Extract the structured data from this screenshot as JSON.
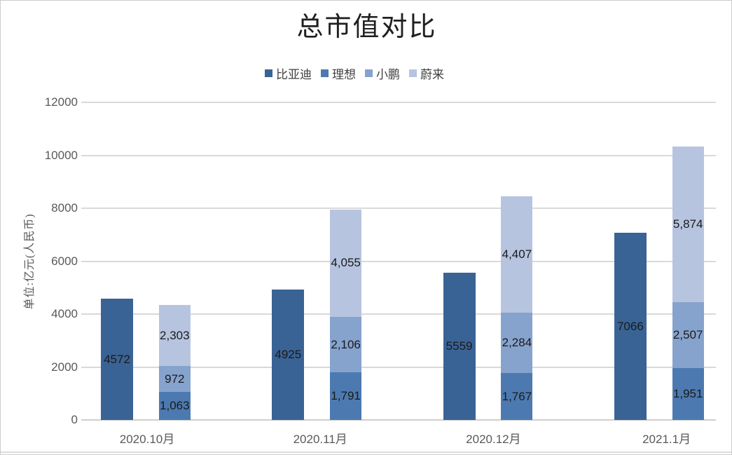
{
  "chart_data": {
    "type": "bar",
    "subtype": "clustered-plus-stacked",
    "title": "总市值对比",
    "ylabel": "单位:亿元(人民币)",
    "xlabel": "",
    "categories": [
      "2020.10月",
      "2020.11月",
      "2020.12月",
      "2021.1月"
    ],
    "series": [
      {
        "name": "比亚迪",
        "color": "#3a6395",
        "stack": "byd",
        "values": [
          4572,
          4925,
          5559,
          7066
        ],
        "labels": [
          "4572",
          "4925",
          "5559",
          "7066"
        ]
      },
      {
        "name": "理想",
        "color": "#4c7ab0",
        "stack": "new-forces",
        "values": [
          1063,
          1791,
          1767,
          1951
        ],
        "labels": [
          "1,063",
          "1,791",
          "1,767",
          "1,951"
        ]
      },
      {
        "name": "小鹏",
        "color": "#86a3cd",
        "stack": "new-forces",
        "values": [
          972,
          2106,
          2284,
          2507
        ],
        "labels": [
          "972",
          "2,106",
          "2,284",
          "2,507"
        ]
      },
      {
        "name": "蔚来",
        "color": "#b7c4e0",
        "stack": "new-forces",
        "values": [
          2303,
          4055,
          4407,
          5874
        ],
        "labels": [
          "2,303",
          "4,055",
          "4,407",
          "5,874"
        ]
      }
    ],
    "ylim": [
      0,
      12000
    ],
    "y_ticks": [
      0,
      2000,
      4000,
      6000,
      8000,
      10000,
      12000
    ],
    "grid": true,
    "legend_position": "top",
    "colors": {
      "grid": "#d9d9d9",
      "axis_text": "#595959",
      "value_label": "#1a1a1a",
      "title_text": "#1f1f1f"
    }
  }
}
